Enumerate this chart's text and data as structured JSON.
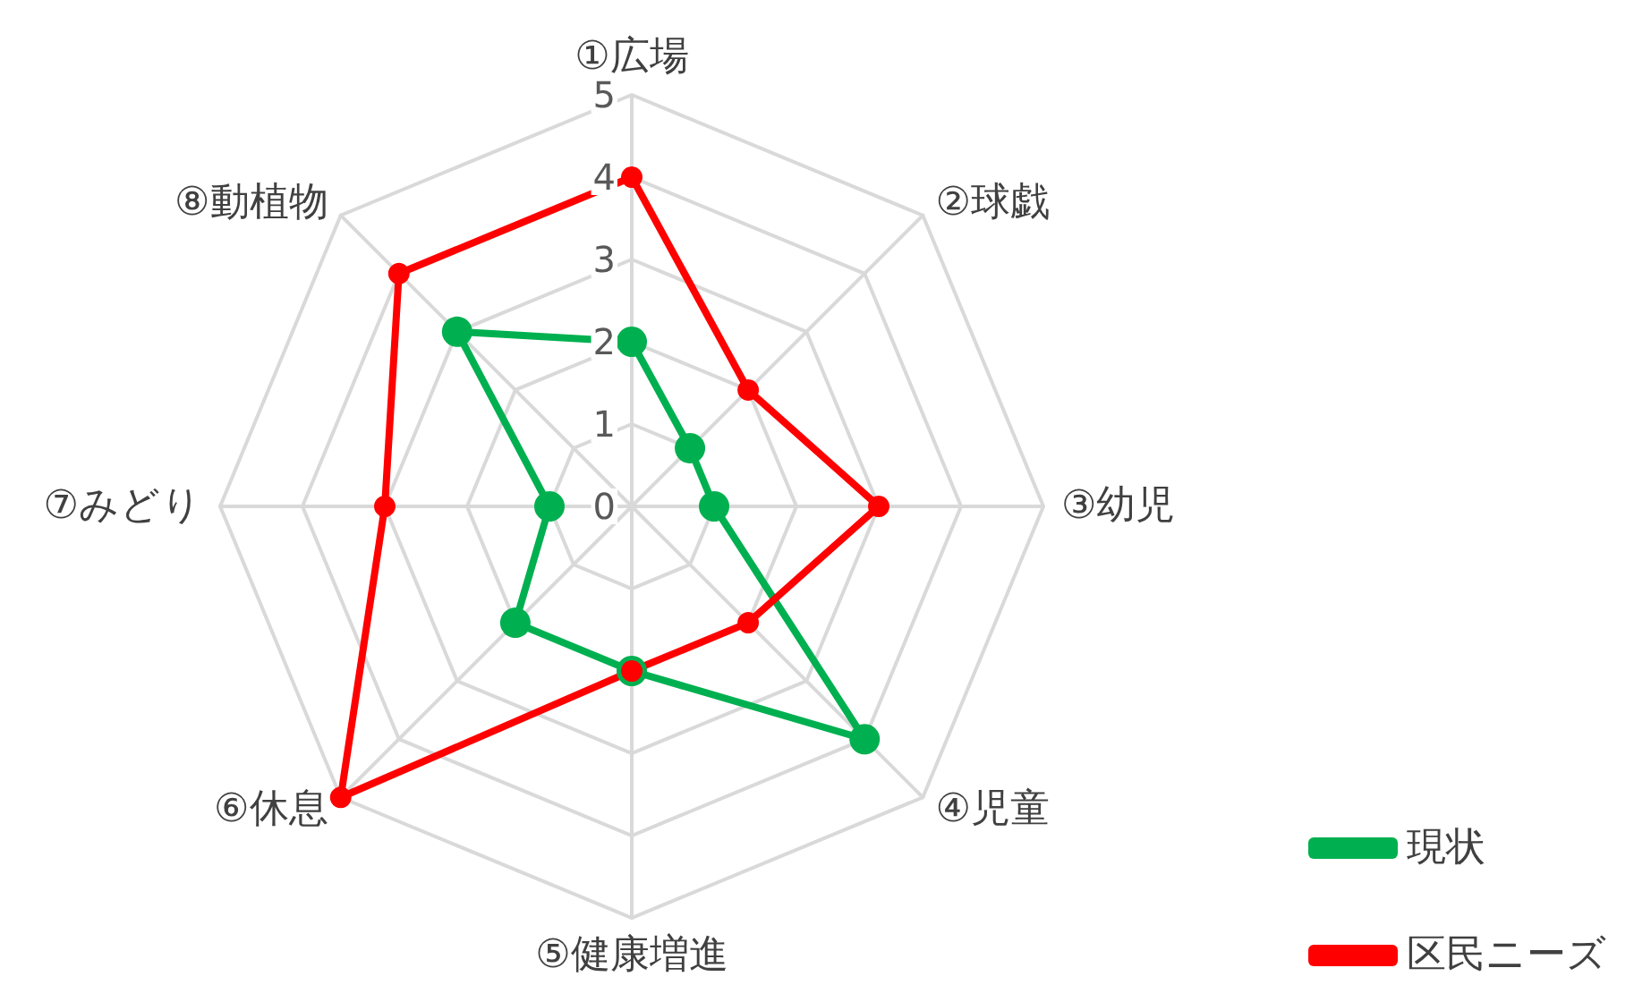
{
  "chart_data": {
    "type": "radar",
    "categories": [
      "①広場",
      "②球戯",
      "③幼児",
      "④児童",
      "⑤健康増進",
      "⑥休息",
      "⑦みどり",
      "⑧動植物"
    ],
    "series": [
      {
        "name": "現状",
        "color": "#00b050",
        "values": [
          2,
          1,
          1,
          4,
          2,
          2,
          1,
          3
        ]
      },
      {
        "name": "区民ニーズ",
        "color": "#ff0000",
        "values": [
          4,
          2,
          3,
          2,
          2,
          5,
          3,
          4
        ]
      }
    ],
    "ylim": [
      0,
      5
    ],
    "yticks": [
      0,
      1,
      2,
      3,
      4,
      5
    ],
    "grid": true,
    "legend": "bottom right",
    "marker": "circle",
    "line_style": "solid"
  }
}
